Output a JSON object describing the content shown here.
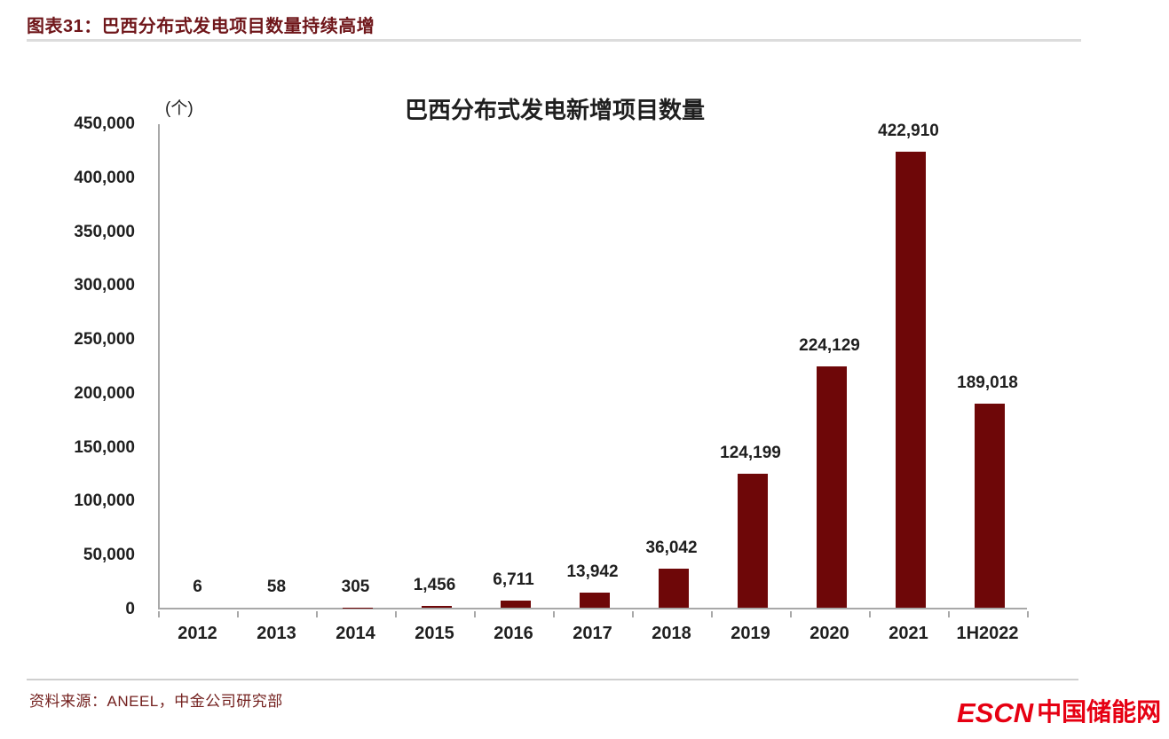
{
  "header": {
    "title": "图表31：巴西分布式发电项目数量持续高增"
  },
  "chart_data": {
    "type": "bar",
    "title": "巴西分布式发电新增项目数量",
    "unit_label": "(个)",
    "categories": [
      "2012",
      "2013",
      "2014",
      "2015",
      "2016",
      "2017",
      "2018",
      "2019",
      "2020",
      "2021",
      "1H2022"
    ],
    "values": [
      6,
      58,
      305,
      1456,
      6711,
      13942,
      36042,
      124199,
      224129,
      422910,
      189018
    ],
    "data_labels": [
      "6",
      "58",
      "305",
      "1,456",
      "6,711",
      "13,942",
      "36,042",
      "124,199",
      "224,129",
      "422,910",
      "189,018"
    ],
    "xlabel": "",
    "ylabel": "(个)",
    "ylim": [
      0,
      450000
    ],
    "y_tick_step": 50000,
    "y_tick_labels": [
      "450,000",
      "400,000",
      "350,000",
      "300,000",
      "250,000",
      "200,000",
      "150,000",
      "100,000",
      "50,000",
      "0"
    ],
    "grid": false,
    "legend_position": "none",
    "bar_color": "#6E0708"
  },
  "footer": {
    "source": "资料来源：ANEEL，中金公司研究部",
    "logo_escn": "ESCN",
    "logo_cn": "中国储能网"
  },
  "colors": {
    "bar": "#6E0708",
    "header_text": "#6F161A",
    "footer_text": "#73201E",
    "logo_red": "#E60012",
    "axis": "#A8A8A8"
  }
}
